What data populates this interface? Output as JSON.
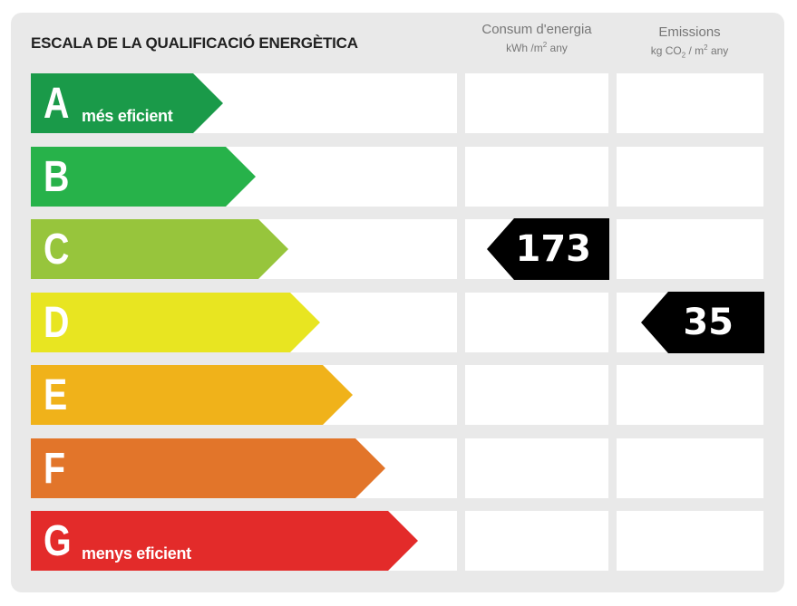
{
  "title": "ESCALA DE LA QUALIFICACIÓ ENERGÈTICA",
  "columns": {
    "energy": {
      "label": "Consum d'energia",
      "unit_prefix": "kWh /m",
      "unit_sup": "2",
      "unit_suffix": " any"
    },
    "emissions": {
      "label": "Emissions",
      "unit_prefix": "kg CO",
      "unit_sub": "2",
      "unit_mid": " / m",
      "unit_sup": "2",
      "unit_suffix": " any"
    }
  },
  "classes": [
    {
      "letter": "A",
      "sublabel": "més eficient",
      "color": "#1a9a49"
    },
    {
      "letter": "B",
      "sublabel": "",
      "color": "#27b24a"
    },
    {
      "letter": "C",
      "sublabel": "",
      "color": "#97c53c"
    },
    {
      "letter": "D",
      "sublabel": "",
      "color": "#e8e521"
    },
    {
      "letter": "E",
      "sublabel": "",
      "color": "#f0b21a"
    },
    {
      "letter": "F",
      "sublabel": "",
      "color": "#e2752a"
    },
    {
      "letter": "G",
      "sublabel": "menys eficient",
      "color": "#e32b2a"
    }
  ],
  "rating": {
    "energy": {
      "value": "173",
      "class": "C"
    },
    "emissions": {
      "value": "35",
      "class": "D"
    }
  }
}
